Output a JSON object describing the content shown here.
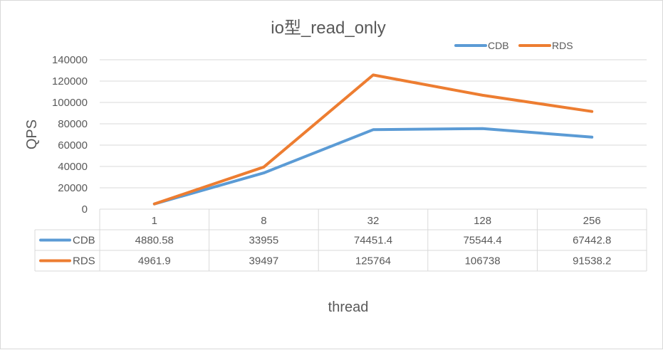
{
  "chart_data": {
    "type": "line",
    "title": "io型_read_only",
    "xlabel": "thread",
    "ylabel": "QPS",
    "categories": [
      "1",
      "8",
      "32",
      "128",
      "256"
    ],
    "ylim": [
      0,
      140000
    ],
    "yticks": [
      0,
      20000,
      40000,
      60000,
      80000,
      100000,
      120000,
      140000
    ],
    "grid": true,
    "legend_position": "top-right",
    "series": [
      {
        "name": "CDB",
        "color": "#5b9bd5",
        "values": [
          4880.58,
          33955,
          74451.4,
          75544.4,
          67442.8
        ]
      },
      {
        "name": "RDS",
        "color": "#ed7d31",
        "values": [
          4961.9,
          39497,
          125764,
          106738,
          91538.2
        ]
      }
    ],
    "data_table": {
      "shown": true,
      "rows": [
        {
          "series": "CDB",
          "cells": [
            "4880.58",
            "33955",
            "74451.4",
            "75544.4",
            "67442.8"
          ]
        },
        {
          "series": "RDS",
          "cells": [
            "4961.9",
            "39497",
            "125764",
            "106738",
            "91538.2"
          ]
        }
      ]
    }
  }
}
